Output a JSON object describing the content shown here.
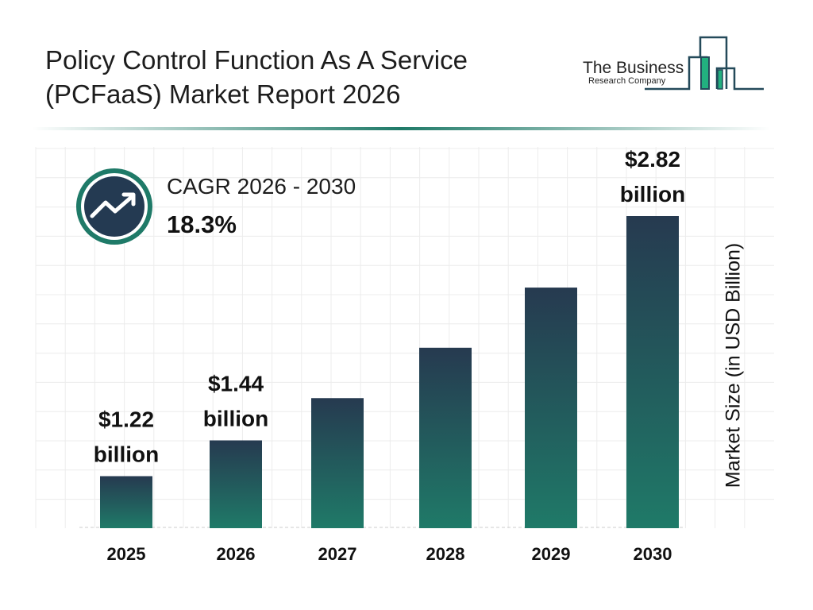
{
  "header": {
    "title_line1": "Policy Control Function As A Service",
    "title_line2": "(PCFaaS) Market Report 2026"
  },
  "logo": {
    "line1": "The Business",
    "line2": "Research Company"
  },
  "cagr": {
    "label": "CAGR 2026 - 2030",
    "value": "18.3%",
    "icon": "trend-up-icon"
  },
  "colors": {
    "bar_top": "#263a50",
    "bar_bottom": "#1f7a68",
    "accent": "#1f7a68",
    "icon_bg": "#243a52"
  },
  "chart_data": {
    "type": "bar",
    "categories": [
      "2025",
      "2026",
      "2027",
      "2028",
      "2029",
      "2030"
    ],
    "values": [
      1.22,
      1.44,
      1.7,
      2.01,
      2.38,
      2.82
    ],
    "data_labels": [
      {
        "index": 0,
        "line1": "$1.22",
        "line2": "billion"
      },
      {
        "index": 1,
        "line1": "$1.44",
        "line2": "billion"
      },
      {
        "index": 5,
        "line1": "$2.82",
        "line2": "billion"
      }
    ],
    "title": "Policy Control Function As A Service (PCFaaS) Market Report 2026",
    "xlabel": "",
    "ylabel": "Market Size (in USD Billion)",
    "grid": true
  }
}
